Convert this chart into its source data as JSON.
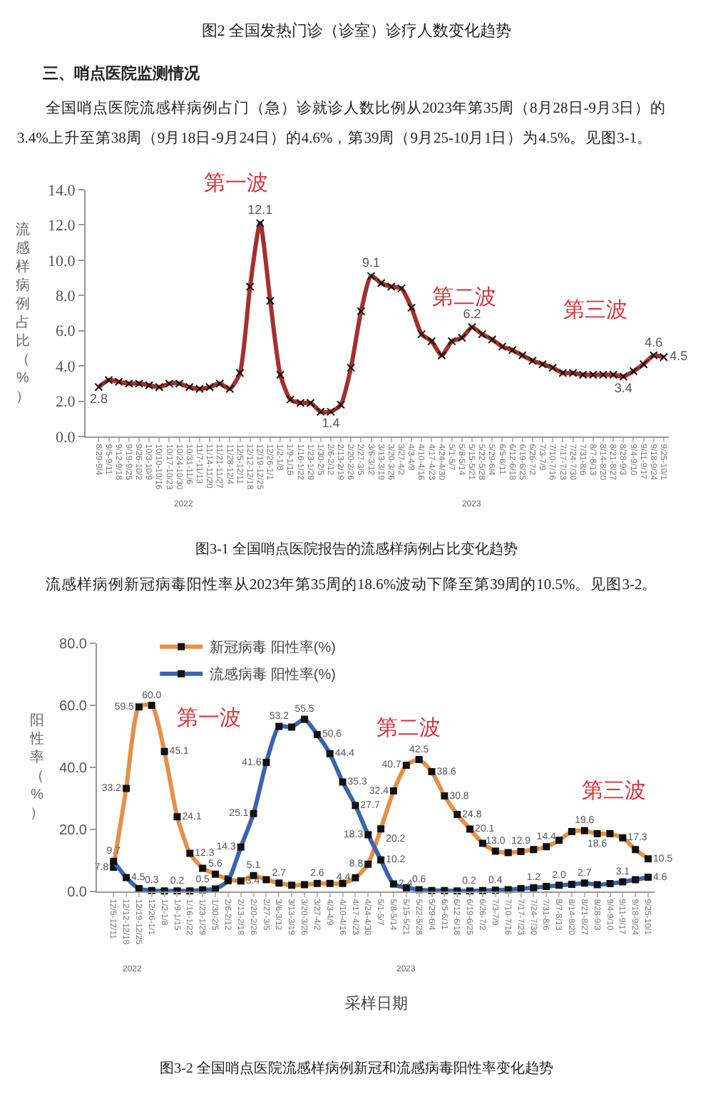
{
  "chart_data": [
    {
      "type": "line",
      "title": "图3-1 全国哨点医院报告的流感样病例占比变化趋势",
      "ylabel": "流感样病例占比（%）",
      "annotations": [
        "图2 全国发热门诊（诊室）诊疗人数变化趋势",
        "三、哨点医院监测情况",
        "全国哨点医院流感样病例占门（急）诊就诊人数比例从2023年第35周（8月28日-9月3日）的3.4%上升至第38周（9月18日-9月24日）的4.6%，第39周（9月25-10月1日）为4.5%。见图3-1。",
        "第一波",
        "第二波",
        "第三波",
        "2022",
        "2023"
      ],
      "categories": [
        "8/29-9/4",
        "9/5-9/11",
        "9/12-9/18",
        "9/19-9/25",
        "9/26-10/2",
        "10/3-10/9",
        "10/10-10/16",
        "10/17-10/23",
        "10/24-10/30",
        "10/31-11/6",
        "11/7-11/13",
        "11/14-11/20",
        "11/21-11/27",
        "11/28-12/4",
        "12/5-12/11",
        "12/12-12/18",
        "12/19-12/25",
        "12/26-1/1",
        "1/2-1/8",
        "1/9-1/15",
        "1/16-1/22",
        "1/23-1/29",
        "1/30-2/5",
        "2/6-2/12",
        "2/13-2/19",
        "2/20-2/26",
        "2/27-3/5",
        "3/6-3/12",
        "3/13-3/19",
        "3/20-3/26",
        "3/27-4/2",
        "4/3-4/9",
        "4/10-4/16",
        "4/17-4/23",
        "4/24-4/30",
        "5/1-5/7",
        "5/8-5/14",
        "5/15-5/21",
        "5/22-5/28",
        "5/29-6/4",
        "6/5-6/11",
        "6/12-6/18",
        "6/19-6/25",
        "6/26-7/2",
        "7/3-7/9",
        "7/10-7/16",
        "7/17-7/23",
        "7/24-7/30",
        "7/31-8/6",
        "8/7-8/13",
        "8/14-8/20",
        "8/21-8/27",
        "8/28-9/3",
        "9/4-9/10",
        "9/11-9/17",
        "9/18-9/24",
        "9/25-10/1"
      ],
      "series": [
        {
          "color": "#a3302c",
          "values": [
            2.8,
            3.2,
            3.1,
            3.0,
            3.0,
            2.9,
            2.8,
            3.0,
            3.0,
            2.8,
            2.7,
            2.8,
            3.0,
            2.7,
            3.6,
            8.5,
            12.1,
            7.7,
            3.5,
            2.1,
            1.9,
            1.9,
            1.4,
            1.4,
            1.8,
            3.9,
            7.1,
            9.1,
            8.7,
            8.5,
            8.4,
            7.3,
            5.8,
            5.4,
            4.6,
            5.4,
            5.6,
            6.2,
            5.8,
            5.5,
            5.1,
            4.9,
            4.6,
            4.3,
            4.1,
            3.9,
            3.6,
            3.6,
            3.5,
            3.5,
            3.5,
            3.5,
            3.4,
            3.7,
            4.1,
            4.6,
            4.5
          ],
          "value_labels": [
            "2.8",
            null,
            null,
            null,
            null,
            null,
            null,
            null,
            null,
            null,
            null,
            null,
            null,
            null,
            null,
            null,
            "12.1",
            null,
            null,
            null,
            null,
            null,
            null,
            "1.4",
            null,
            null,
            null,
            "9.1",
            null,
            null,
            null,
            null,
            null,
            null,
            null,
            null,
            null,
            "6.2",
            null,
            null,
            null,
            null,
            null,
            null,
            null,
            null,
            null,
            null,
            null,
            null,
            null,
            null,
            "3.4",
            null,
            null,
            "4.6",
            "4.5"
          ]
        }
      ],
      "ylim": [
        0,
        14
      ],
      "yticks": [
        {
          "value": 0,
          "label": "0.0"
        },
        {
          "value": 2,
          "label": "2.0"
        },
        {
          "value": 4,
          "label": "4.0"
        },
        {
          "value": 6,
          "label": "6.0"
        },
        {
          "value": 8,
          "label": "8.0"
        },
        {
          "value": 10,
          "label": "10.0"
        },
        {
          "value": 12,
          "label": "12.0"
        },
        {
          "value": 14,
          "label": "14.0"
        }
      ],
      "marker": "cross"
    },
    {
      "type": "line",
      "title": "图3-2 全国哨点医院流感样病例新冠和流感病毒阳性率变化趋势",
      "ylabel": "阳性率（%）",
      "xlabel": "采样日期",
      "annotations": [
        "流感样病例新冠病毒阳性率从2023年第35周的18.6%波动下降至第39周的10.5%。见图3-2。",
        "第一波",
        "第二波",
        "第三波",
        "2022",
        "2023"
      ],
      "categories": [
        "12/5-12/11",
        "12/12-12/18",
        "12/19-12/25",
        "12/26-1/1",
        "1/2-1/8",
        "1/9-1/15",
        "1/16-1/22",
        "1/23-1/29",
        "1/30-2/5",
        "2/6-2/12",
        "2/13-2/19",
        "2/20-2/26",
        "2/27-3/5",
        "3/6-3/12",
        "3/13-3/19",
        "3/20-3/26",
        "3/27-4/2",
        "4/3-4/9",
        "4/10-4/16",
        "4/17-4/23",
        "4/24-4/30",
        "5/1-5/7",
        "5/8-5/14",
        "5/15-5/21",
        "5/22-5/28",
        "5/29-6/4",
        "6/5-6/11",
        "6/12-6/18",
        "6/19-6/25",
        "6/26-7/2",
        "7/3-7/9",
        "7/10-7/16",
        "7/17-7/23",
        "7/24-7/30",
        "7/31-8/6",
        "8/7-8/13",
        "8/14-8/20",
        "8/21-8/27",
        "8/28-9/3",
        "9/4-9/10",
        "9/11-9/17",
        "9/18-9/24",
        "9/25-10/1"
      ],
      "series": [
        {
          "name": "新冠病毒 阳性率(%)",
          "color": "#e3914a",
          "values": [
            7.8,
            33.2,
            59.5,
            60.0,
            45.1,
            24.1,
            12.3,
            7.5,
            5.6,
            4.0,
            3.4,
            5.1,
            3.8,
            2.7,
            2.0,
            2.2,
            2.6,
            2.6,
            2.6,
            4.4,
            8.8,
            20.2,
            32.4,
            40.7,
            42.5,
            38.6,
            30.8,
            24.8,
            20.1,
            15.5,
            13.0,
            12.5,
            12.9,
            13.5,
            14.4,
            16.5,
            19.3,
            19.6,
            18.6,
            18.6,
            17.3,
            13.5,
            10.5
          ],
          "value_labels": [
            "7.8",
            "33.2",
            "59.5",
            "60.0",
            "45.1",
            "24.1",
            "12.3",
            null,
            "5.6",
            null,
            "3.4",
            "5.1",
            null,
            "2.7",
            null,
            null,
            "2.6",
            null,
            null,
            "4.4",
            "8.8",
            "20.2",
            "32.4",
            "40.7",
            "42.5",
            "38.6",
            "30.8",
            "24.8",
            "20.1",
            null,
            "13.0",
            null,
            "12.9",
            null,
            "14.4",
            null,
            null,
            "19.6",
            "18.6",
            null,
            "17.3",
            null,
            "10.5"
          ]
        },
        {
          "name": "流感病毒 阳性率(%)",
          "color": "#3d63ac",
          "values": [
            9.7,
            4.5,
            0.9,
            0.3,
            0.2,
            0.2,
            0.2,
            0.5,
            0.8,
            3.5,
            14.3,
            25.1,
            41.6,
            53.2,
            53.0,
            55.5,
            50.6,
            44.4,
            35.3,
            27.7,
            18.3,
            10.2,
            2.4,
            1.2,
            0.6,
            0.3,
            0.3,
            0.2,
            0.2,
            0.3,
            0.4,
            0.6,
            0.9,
            1.2,
            1.6,
            2.0,
            2.3,
            2.7,
            2.2,
            2.5,
            3.1,
            3.8,
            4.6
          ],
          "value_labels": [
            "9.7",
            "4.5",
            null,
            "0.3",
            null,
            "0.2",
            null,
            "0.5",
            null,
            null,
            "14.3",
            "25.1",
            "41.6",
            "53.2",
            null,
            "55.5",
            "50.6",
            "44.4",
            "35.3",
            "27.7",
            "18.3",
            "10.2",
            "2.4",
            null,
            "0.6",
            null,
            null,
            "0.2",
            null,
            null,
            "0.4",
            null,
            null,
            "1.2",
            null,
            "2.0",
            null,
            "2.7",
            null,
            null,
            "3.1",
            null,
            "4.6"
          ]
        }
      ],
      "ylim": [
        0,
        80
      ],
      "yticks": [
        {
          "value": 0,
          "label": "0.0"
        },
        {
          "value": 20,
          "label": "20.0"
        },
        {
          "value": 40,
          "label": "40.0"
        },
        {
          "value": 60,
          "label": "60.0"
        },
        {
          "value": 80,
          "label": "80.0"
        }
      ],
      "marker": "square",
      "legend": "top left"
    }
  ]
}
